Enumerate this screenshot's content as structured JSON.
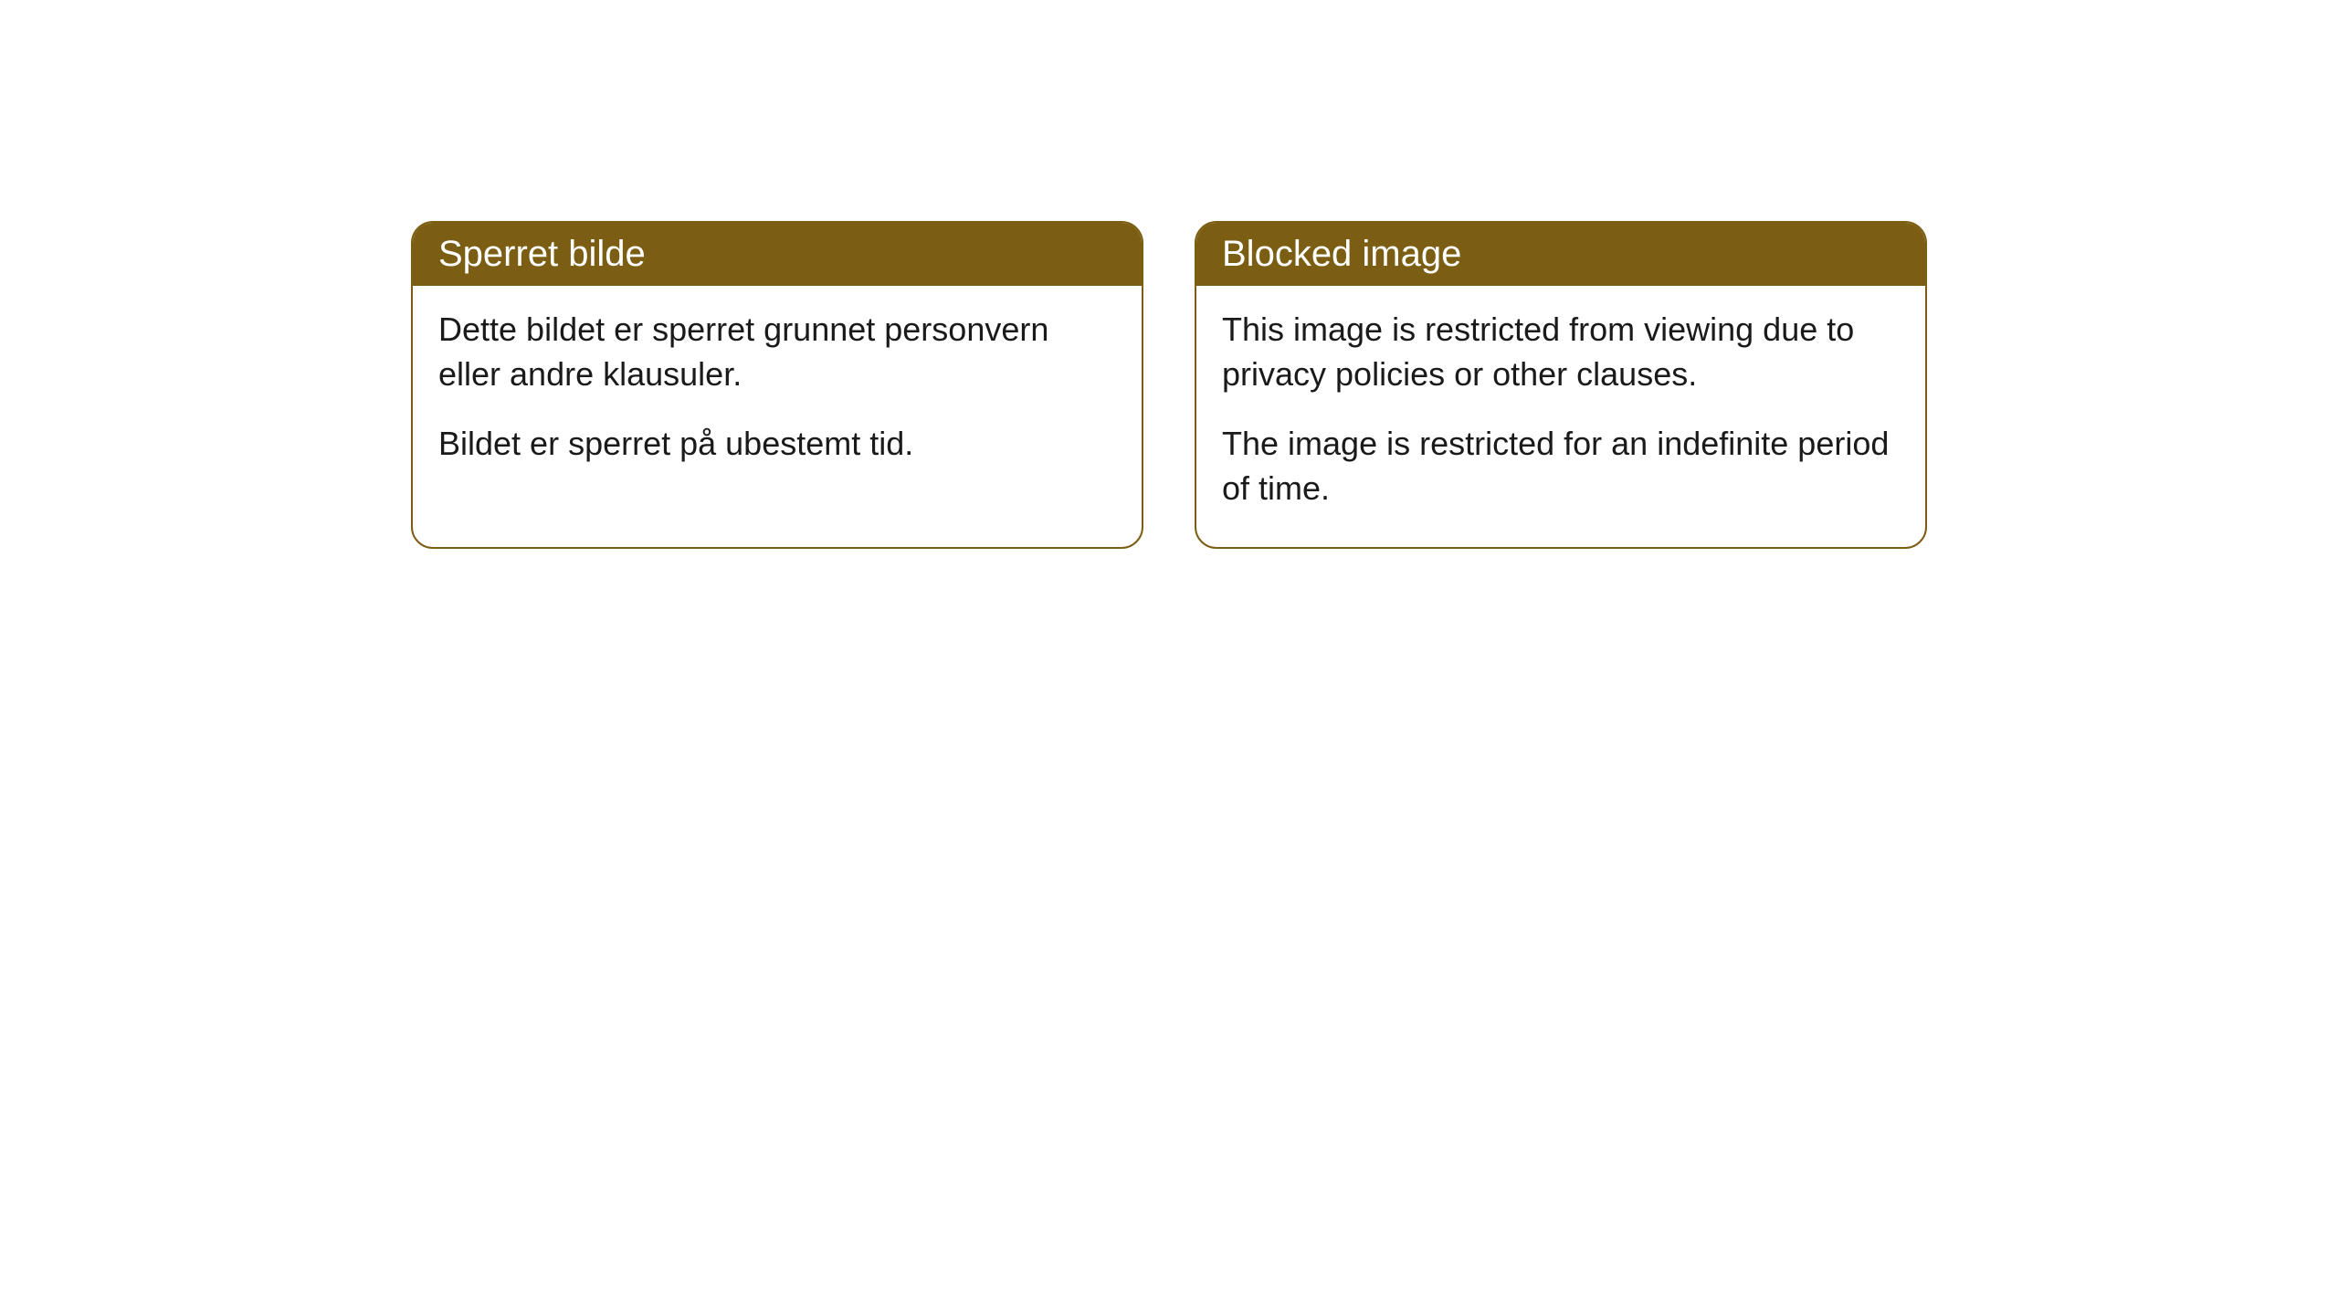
{
  "cards": [
    {
      "title": "Sperret bilde",
      "paragraph1": "Dette bildet er sperret grunnet personvern eller andre klausuler.",
      "paragraph2": "Bildet er sperret på ubestemt tid."
    },
    {
      "title": "Blocked image",
      "paragraph1": "This image is restricted from viewing due to privacy policies or other clauses.",
      "paragraph2": "The image is restricted for an indefinite period of time."
    }
  ],
  "style": {
    "header_background": "#7b5e13",
    "header_text_color": "#ffffff",
    "border_color": "#7b5e13",
    "body_text_color": "#1a1a1a",
    "body_background": "#ffffff",
    "border_radius": 24,
    "header_fontsize": 40,
    "body_fontsize": 36
  }
}
